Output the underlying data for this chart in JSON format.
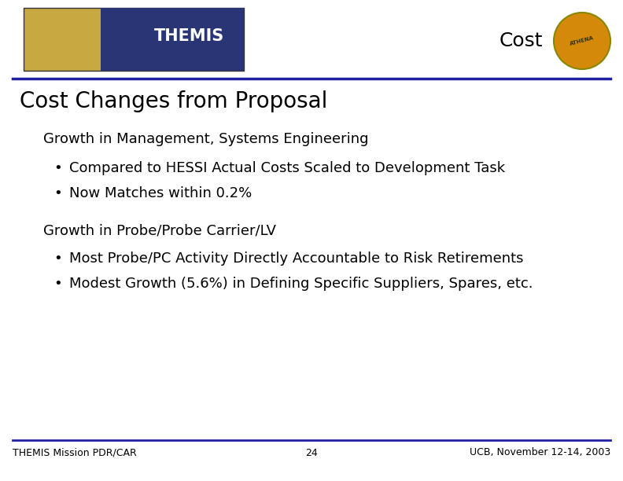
{
  "title": "Cost Changes from Proposal",
  "header_label": "Cost",
  "section1_header": "Growth in Management, Systems Engineering",
  "section1_bullets": [
    "Compared to HESSI Actual Costs Scaled to Development Task",
    "Now Matches within 0.2%"
  ],
  "section2_header": "Growth in Probe/Probe Carrier/LV",
  "section2_bullets": [
    "Most Probe/PC Activity Directly Accountable to Risk Retirements",
    "Modest Growth (5.6%) in Defining Specific Suppliers, Spares, etc."
  ],
  "footer_left": "THEMIS Mission PDR/CAR",
  "footer_center": "24",
  "footer_right": "UCB, November 12-14, 2003",
  "header_line_color": "#1f1fa0",
  "footer_line_color": "#1f1fa0",
  "bg_color": "#ffffff",
  "title_color": "#000000",
  "text_color": "#000000",
  "header_label_color": "#000000",
  "footer_text_color": "#000000",
  "title_fontsize": 20,
  "section_header_fontsize": 13,
  "bullet_fontsize": 13,
  "footer_fontsize": 9,
  "header_label_fontsize": 18,
  "logo_bg_color": "#c8a840",
  "logo_blue_color": "#2a3575",
  "logo_circle_color": "#d4890a"
}
